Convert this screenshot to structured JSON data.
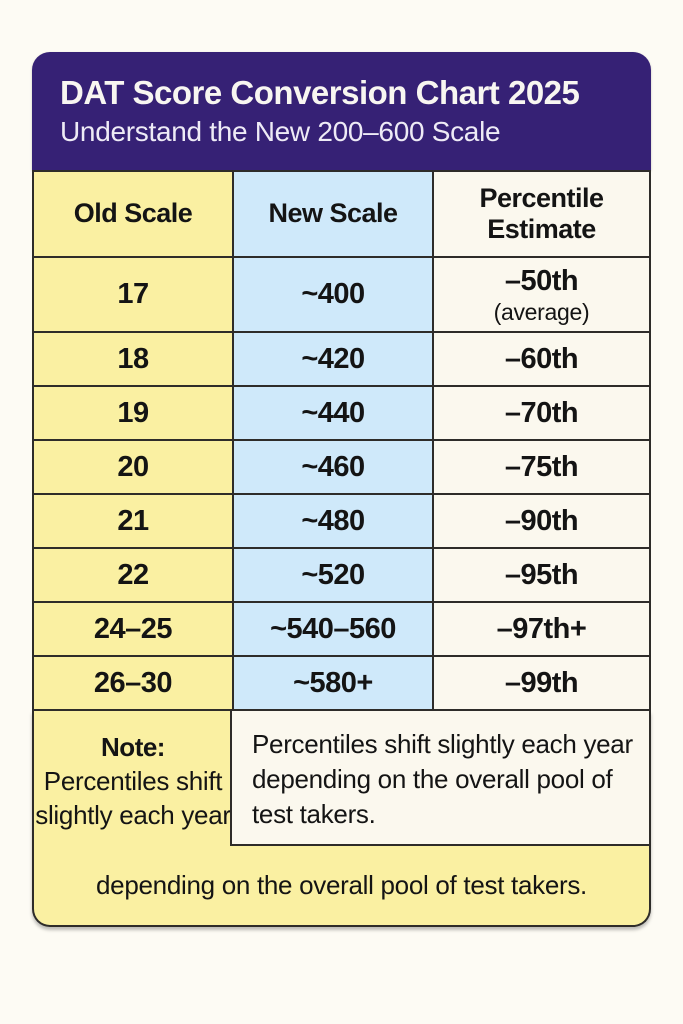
{
  "chart_data": {
    "type": "table",
    "title": "DAT Score Conversion Chart 2025",
    "subtitle": "Understand the New 200–600 Scale",
    "columns": [
      "Old Scale",
      "New Scale",
      "Percentile Estimate"
    ],
    "rows": [
      {
        "old_scale": "17",
        "new_scale": "~400",
        "percentile": "–50th",
        "percentile_note": "(average)"
      },
      {
        "old_scale": "18",
        "new_scale": "~420",
        "percentile": "–60th"
      },
      {
        "old_scale": "19",
        "new_scale": "~440",
        "percentile": "–70th"
      },
      {
        "old_scale": "20",
        "new_scale": "~460",
        "percentile": "–75th"
      },
      {
        "old_scale": "21",
        "new_scale": "~480",
        "percentile": "–90th"
      },
      {
        "old_scale": "22",
        "new_scale": "~520",
        "percentile": "–95th"
      },
      {
        "old_scale": "24–25",
        "new_scale": "~540–560",
        "percentile": "–97th+"
      },
      {
        "old_scale": "26–30",
        "new_scale": "~580+",
        "percentile": "–99th"
      }
    ],
    "note": {
      "label": "Note:",
      "left_text": "Percentiles shift slightly each year",
      "overflow_text": "depending on the overall pool of test takers.",
      "box_text": "Percentiles shift slightly each year depending on the overall pool of test takers."
    }
  },
  "colors": {
    "page_bg": "#fdfbf4",
    "header_bg": "#362175",
    "header_text": "#f8f6f1",
    "header_subtext": "#eeebf6",
    "old_scale_bg": "#faf0a2",
    "new_scale_bg": "#cfe9fa",
    "percentile_bg": "#fbf8ee",
    "border": "#2e2c29",
    "text": "#141414"
  }
}
